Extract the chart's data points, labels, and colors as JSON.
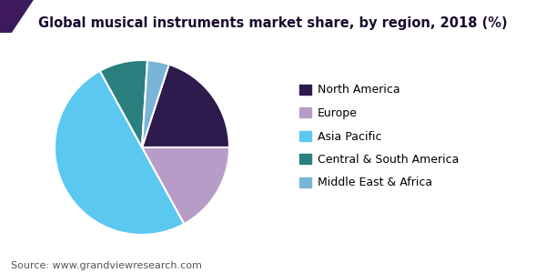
{
  "title": "Global musical instruments market share, by region, 2018 (%)",
  "source": "Source: www.grandviewresearch.com",
  "labels": [
    "North America",
    "Europe",
    "Asia Pacific",
    "Central & South America",
    "Middle East & Africa"
  ],
  "values": [
    20,
    17,
    50,
    9,
    4
  ],
  "colors": [
    "#2d1b4e",
    "#b89cc8",
    "#5bc8f0",
    "#2a7f7f",
    "#7ab4d8"
  ],
  "startangle": 72,
  "title_fontsize": 10.5,
  "legend_fontsize": 9,
  "source_fontsize": 8,
  "header_bar_color": "#6b2f7a",
  "header_line_color": "#5500aa",
  "background_color": "#ffffff",
  "wedge_edgecolor": "#ffffff",
  "wedge_linewidth": 1.5
}
